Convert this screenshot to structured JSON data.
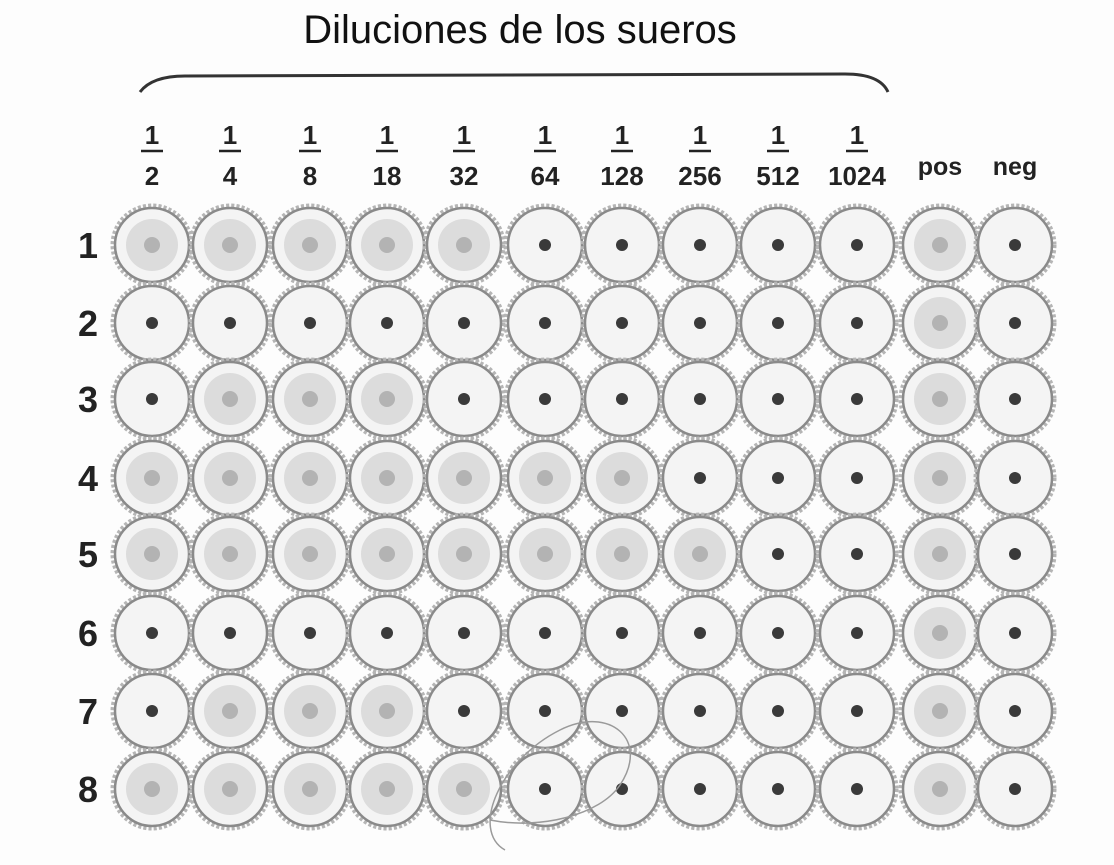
{
  "title": "Diluciones de los sueros",
  "dilutions": [
    {
      "num": "1",
      "den": "2"
    },
    {
      "num": "1",
      "den": "4"
    },
    {
      "num": "1",
      "den": "8"
    },
    {
      "num": "1",
      "den": "18"
    },
    {
      "num": "1",
      "den": "32"
    },
    {
      "num": "1",
      "den": "64"
    },
    {
      "num": "1",
      "den": "128"
    },
    {
      "num": "1",
      "den": "256"
    },
    {
      "num": "1",
      "den": "512"
    },
    {
      "num": "1",
      "den": "1024"
    }
  ],
  "controls": [
    "pos",
    "neg"
  ],
  "rows": [
    "1",
    "2",
    "3",
    "4",
    "5",
    "6",
    "7",
    "8"
  ],
  "wells": [
    [
      "diffuse",
      "diffuse",
      "diffuse",
      "diffuse",
      "diffuse",
      "button",
      "button",
      "button",
      "button",
      "button",
      "diffuse",
      "button"
    ],
    [
      "button",
      "button",
      "button",
      "button",
      "button",
      "button",
      "button",
      "button",
      "button",
      "button",
      "diffuse",
      "button"
    ],
    [
      "button",
      "diffuse",
      "diffuse",
      "diffuse",
      "button",
      "button",
      "button",
      "button",
      "button",
      "button",
      "diffuse",
      "button"
    ],
    [
      "diffuse",
      "diffuse",
      "diffuse",
      "diffuse",
      "diffuse",
      "diffuse",
      "diffuse",
      "button",
      "button",
      "button",
      "diffuse",
      "button"
    ],
    [
      "diffuse",
      "diffuse",
      "diffuse",
      "diffuse",
      "diffuse",
      "diffuse",
      "diffuse",
      "diffuse",
      "button",
      "button",
      "diffuse",
      "button"
    ],
    [
      "button",
      "button",
      "button",
      "button",
      "button",
      "button",
      "button",
      "button",
      "button",
      "button",
      "diffuse",
      "button"
    ],
    [
      "button",
      "diffuse",
      "diffuse",
      "diffuse",
      "button",
      "button",
      "button",
      "button",
      "button",
      "button",
      "diffuse",
      "button"
    ],
    [
      "diffuse",
      "diffuse",
      "diffuse",
      "diffuse",
      "diffuse",
      "button",
      "button",
      "button",
      "button",
      "button",
      "diffuse",
      "button"
    ]
  ],
  "colors": {
    "ring": "#8a8a8a",
    "ring_light": "#b5b5b5",
    "dot": "#3a3a3a",
    "diffuse": "#a9a9a9"
  }
}
